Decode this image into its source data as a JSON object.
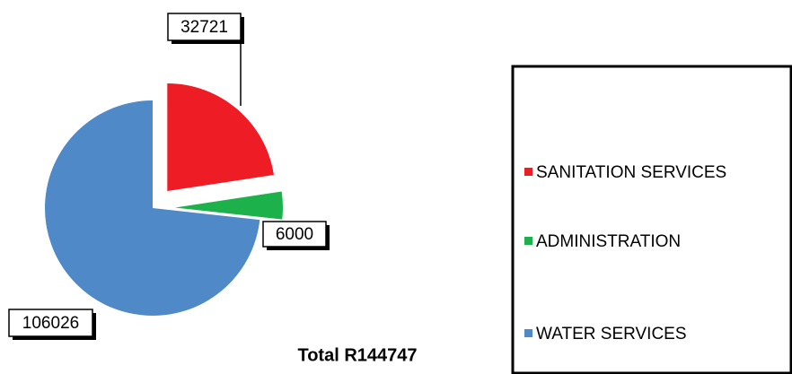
{
  "chart_data": {
    "type": "pie",
    "categories": [
      "SANITATION  SERVICES",
      "ADMINISTRATION",
      "WATER SERVICES"
    ],
    "values": [
      32721,
      6000,
      106026
    ],
    "colors": [
      "#ee1c25",
      "#1db14b",
      "#4f89c8"
    ],
    "annotation": "Total R144747",
    "legend": "right"
  }
}
